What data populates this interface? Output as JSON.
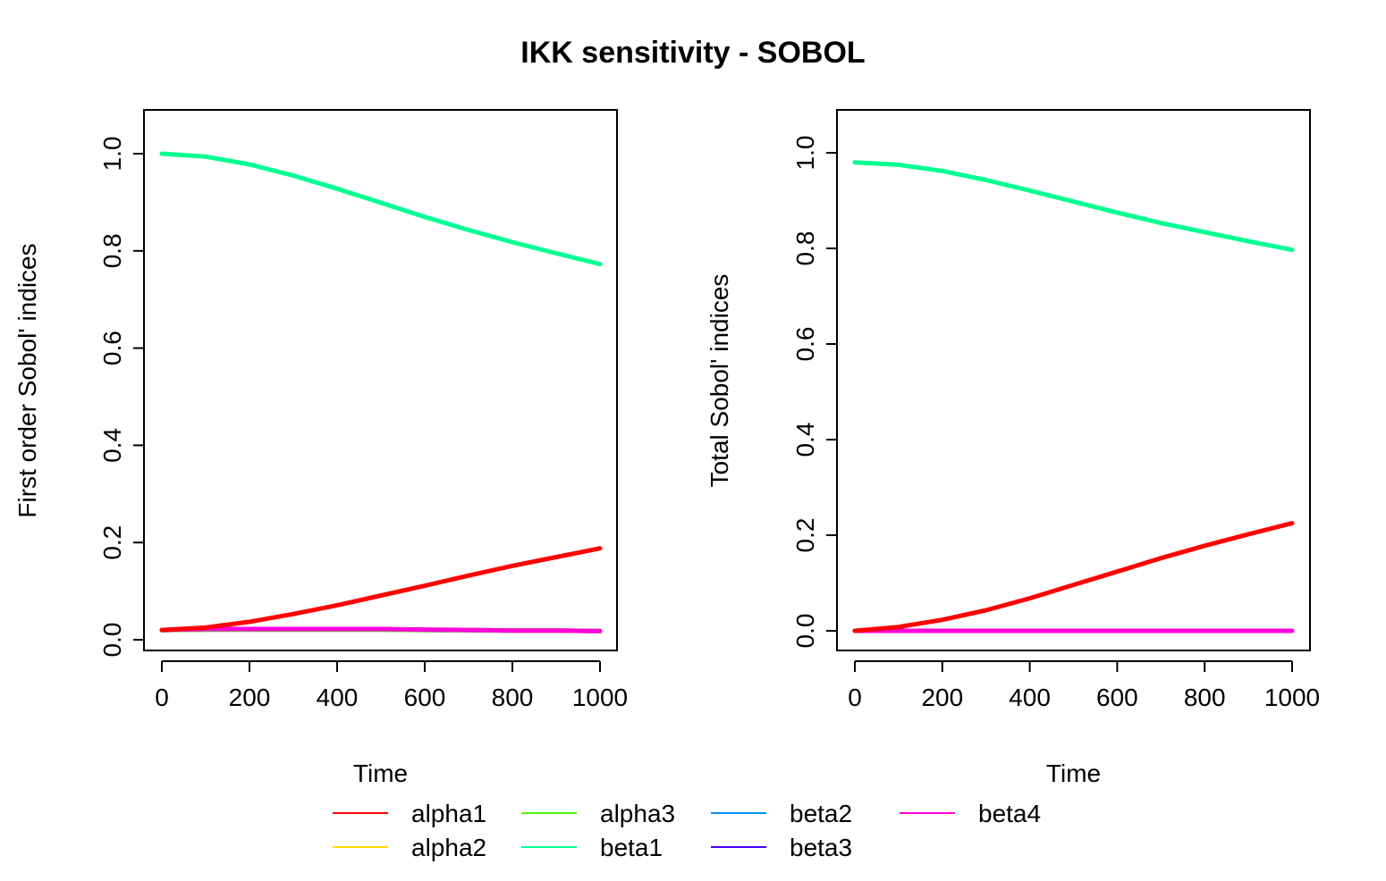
{
  "title": "IKK sensitivity - SOBOL",
  "colors": {
    "alpha1": "#FF0000",
    "alpha2": "#FFDB00",
    "alpha3": "#49FF00",
    "beta1": "#00FF92",
    "beta2": "#0092FF",
    "beta3": "#4900FF",
    "beta4": "#FF00DB"
  },
  "legend": {
    "placement": "bottom-center",
    "entries": [
      "alpha1",
      "alpha2",
      "alpha3",
      "beta1",
      "beta2",
      "beta3",
      "beta4"
    ]
  },
  "chart_data": [
    {
      "type": "line",
      "xlabel": "Time",
      "ylabel": "First order Sobol' indices",
      "xlim": [
        0,
        1000
      ],
      "ylim": [
        0,
        1.0
      ],
      "xticks": [
        "0",
        "200",
        "400",
        "600",
        "800",
        "1000"
      ],
      "yticks": [
        "0.0",
        "0.2",
        "0.4",
        "0.6",
        "0.8",
        "1.0"
      ],
      "grid": false,
      "x": [
        0,
        100,
        200,
        300,
        400,
        500,
        600,
        700,
        800,
        900,
        1000
      ],
      "series": [
        {
          "name": "alpha1",
          "values": [
            0.02,
            0.025,
            0.037,
            0.053,
            0.071,
            0.091,
            0.111,
            0.132,
            0.152,
            0.17,
            0.188
          ]
        },
        {
          "name": "alpha2",
          "values": [
            0.02,
            0.021,
            0.021,
            0.021,
            0.021,
            0.021,
            0.02,
            0.02,
            0.019,
            0.019,
            0.018
          ]
        },
        {
          "name": "alpha3",
          "values": [
            0.02,
            0.021,
            0.021,
            0.021,
            0.021,
            0.021,
            0.02,
            0.02,
            0.019,
            0.019,
            0.018
          ]
        },
        {
          "name": "beta1",
          "values": [
            1.0,
            0.994,
            0.978,
            0.955,
            0.928,
            0.899,
            0.87,
            0.843,
            0.818,
            0.795,
            0.773
          ]
        },
        {
          "name": "beta2",
          "values": [
            0.02,
            0.021,
            0.021,
            0.021,
            0.021,
            0.021,
            0.02,
            0.02,
            0.019,
            0.019,
            0.018
          ]
        },
        {
          "name": "beta3",
          "values": [
            0.02,
            0.021,
            0.021,
            0.021,
            0.021,
            0.021,
            0.02,
            0.02,
            0.019,
            0.019,
            0.018
          ]
        },
        {
          "name": "beta4",
          "values": [
            0.02,
            0.022,
            0.022,
            0.022,
            0.022,
            0.022,
            0.021,
            0.02,
            0.019,
            0.019,
            0.018
          ]
        }
      ]
    },
    {
      "type": "line",
      "xlabel": "Time",
      "ylabel": "Total Sobol' indices",
      "xlim": [
        0,
        1000
      ],
      "ylim": [
        0,
        1.0
      ],
      "xticks": [
        "0",
        "200",
        "400",
        "600",
        "800",
        "1000"
      ],
      "yticks": [
        "0.0",
        "0.2",
        "0.4",
        "0.6",
        "0.8",
        "1.0"
      ],
      "grid": false,
      "x": [
        0,
        100,
        200,
        300,
        400,
        500,
        600,
        700,
        800,
        900,
        1000
      ],
      "series": [
        {
          "name": "alpha1",
          "values": [
            0.0,
            0.008,
            0.023,
            0.043,
            0.068,
            0.096,
            0.124,
            0.152,
            0.178,
            0.202,
            0.225
          ]
        },
        {
          "name": "alpha2",
          "values": [
            0.0,
            0.0,
            0.0,
            0.0,
            0.0,
            0.0,
            0.0,
            0.0,
            0.0,
            0.0,
            0.0
          ]
        },
        {
          "name": "alpha3",
          "values": [
            0.0,
            0.0,
            0.0,
            0.0,
            0.0,
            0.0,
            0.0,
            0.0,
            0.0,
            0.0,
            0.0
          ]
        },
        {
          "name": "beta1",
          "values": [
            0.98,
            0.975,
            0.962,
            0.943,
            0.921,
            0.898,
            0.875,
            0.853,
            0.834,
            0.815,
            0.797
          ]
        },
        {
          "name": "beta2",
          "values": [
            0.0,
            0.0,
            0.0,
            0.0,
            0.0,
            0.0,
            0.0,
            0.0,
            0.0,
            0.0,
            0.0
          ]
        },
        {
          "name": "beta3",
          "values": [
            0.0,
            0.0,
            0.0,
            0.0,
            0.0,
            0.0,
            0.0,
            0.0,
            0.0,
            0.0,
            0.0
          ]
        },
        {
          "name": "beta4",
          "values": [
            0.0,
            0.0,
            0.0,
            0.0,
            0.0,
            0.0,
            0.0,
            0.0,
            0.0,
            0.0,
            0.0
          ]
        }
      ]
    }
  ]
}
